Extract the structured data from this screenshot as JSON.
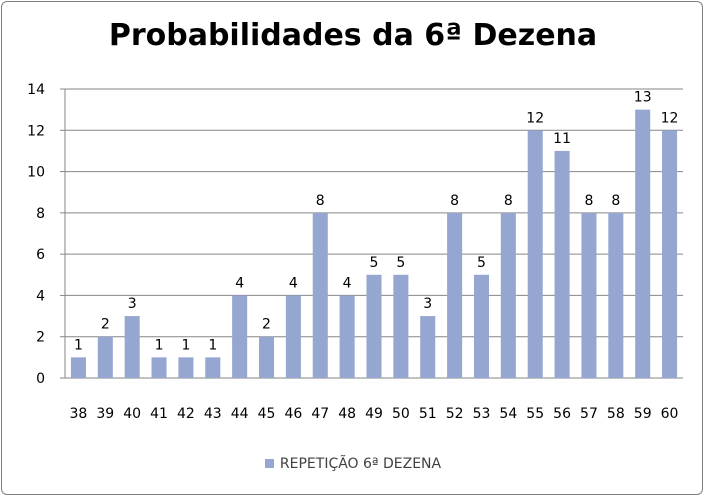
{
  "chart_data": {
    "type": "bar",
    "title": "Probabilidades da 6ª Dezena",
    "xlabel": "",
    "ylabel": "",
    "ylim": [
      0,
      14
    ],
    "yticks": [
      0,
      2,
      4,
      6,
      8,
      10,
      12,
      14
    ],
    "grid": true,
    "legend_position": "bottom",
    "categories": [
      "38",
      "39",
      "40",
      "41",
      "42",
      "43",
      "44",
      "45",
      "46",
      "47",
      "48",
      "49",
      "50",
      "51",
      "52",
      "53",
      "54",
      "55",
      "56",
      "57",
      "58",
      "59",
      "60"
    ],
    "series": [
      {
        "name": "REPETIÇÃO 6ª DEZENA",
        "color": "#95a7d0",
        "values": [
          1,
          2,
          3,
          1,
          1,
          1,
          4,
          2,
          4,
          8,
          4,
          5,
          5,
          3,
          8,
          5,
          8,
          12,
          11,
          8,
          8,
          13,
          12
        ]
      }
    ]
  }
}
